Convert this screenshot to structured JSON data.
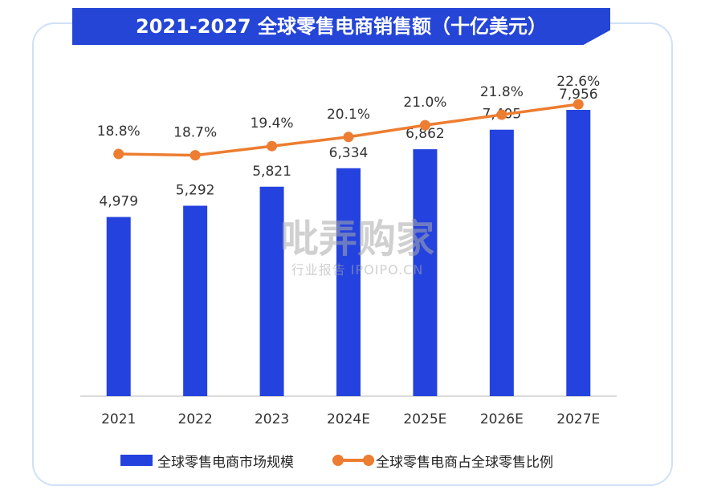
{
  "title": "2021-2027 全球零售电商销售额（十亿美元）",
  "chart_data": {
    "type": "bar",
    "categories": [
      "2021",
      "2022",
      "2023",
      "2024E",
      "2025E",
      "2026E",
      "2027E"
    ],
    "series": [
      {
        "name": "全球零售电商市场规模",
        "type": "bar",
        "values": [
          4979,
          5292,
          5821,
          6334,
          6862,
          7405,
          7956
        ],
        "labels": [
          "4,979",
          "5,292",
          "5,821",
          "6,334",
          "6,862",
          "7,405",
          "7,956"
        ],
        "color": "#2443de"
      },
      {
        "name": "全球零售电商占全球零售比例",
        "type": "line",
        "values": [
          18.8,
          18.7,
          19.4,
          20.1,
          21.0,
          21.8,
          22.6
        ],
        "labels": [
          "18.8%",
          "18.7%",
          "19.4%",
          "20.1%",
          "21.0%",
          "21.8%",
          "22.6%"
        ],
        "color": "#ed7d31"
      }
    ],
    "ylim": [
      0,
      10000
    ],
    "y2lim": [
      10,
      25
    ],
    "grid": false,
    "legend_position": "bottom"
  },
  "watermark": {
    "main": "吡弄购家",
    "sub": "行业报告 IPOIPO.CN"
  }
}
